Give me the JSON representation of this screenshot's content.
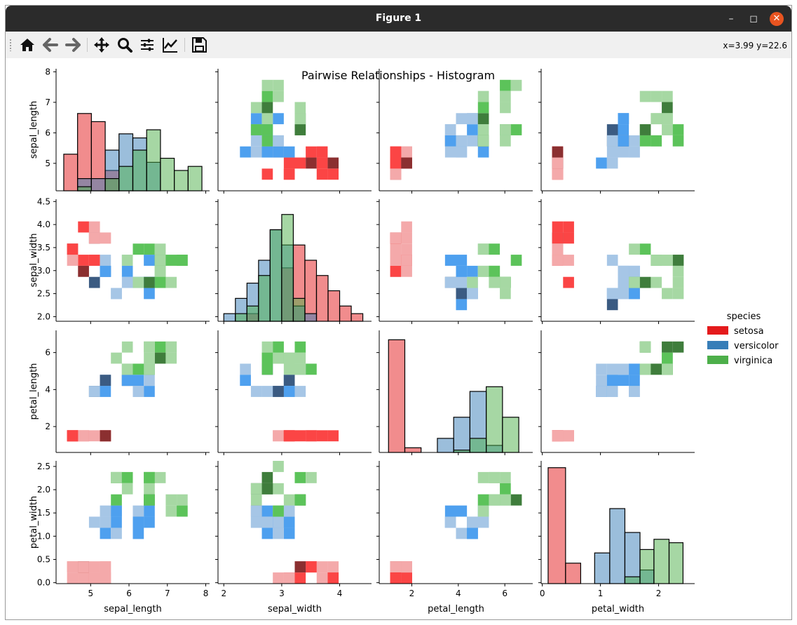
{
  "window": {
    "title": "Figure 1",
    "minimize_icon": "minimize-icon",
    "maximize_icon": "maximize-icon",
    "close_icon": "close-icon"
  },
  "toolbar": {
    "items": [
      {
        "name": "home-button",
        "icon": "home-icon"
      },
      {
        "name": "back-button",
        "icon": "arrow-left-icon"
      },
      {
        "name": "forward-button",
        "icon": "arrow-right-icon"
      },
      {
        "name": "pan-button",
        "icon": "move-icon"
      },
      {
        "name": "zoom-button",
        "icon": "magnifier-icon"
      },
      {
        "name": "subplots-button",
        "icon": "sliders-icon"
      },
      {
        "name": "edit-axes-button",
        "icon": "line-chart-icon"
      },
      {
        "name": "save-button",
        "icon": "floppy-icon"
      }
    ],
    "coords": "x=3.99 y=22.6"
  },
  "chart_data": {
    "type": "heatmap",
    "title": "Pairwise Relationships - Histogram",
    "variables": [
      "sepal_length",
      "sepal_width",
      "petal_length",
      "petal_width"
    ],
    "ticks": [
      [
        5,
        6,
        7,
        8
      ],
      [
        2,
        3,
        4
      ],
      [
        2,
        4,
        6
      ],
      [
        0,
        1,
        2
      ]
    ],
    "ytick_labels": [
      [
        "5",
        "6",
        "7",
        "8"
      ],
      [
        "2.0",
        "2.5",
        "3.0",
        "3.5",
        "4.0",
        "4.5"
      ],
      [
        "2",
        "4",
        "6"
      ],
      [
        "0.0",
        "0.5",
        "1.0",
        "1.5",
        "2.0",
        "2.5"
      ]
    ],
    "ytick_values": [
      [
        5,
        6,
        7,
        8
      ],
      [
        2.0,
        2.5,
        3.0,
        3.5,
        4.0,
        4.5
      ],
      [
        2,
        4,
        6
      ],
      [
        0.0,
        0.5,
        1.0,
        1.5,
        2.0,
        2.5
      ]
    ],
    "ranges": [
      [
        4.1,
        8.1
      ],
      [
        1.9,
        4.55
      ],
      [
        0.6,
        7.2
      ],
      [
        -0.02,
        2.62
      ]
    ],
    "legend": {
      "title": "species",
      "placement": "right",
      "entries": [
        {
          "label": "setosa",
          "color": "#e41a1c"
        },
        {
          "label": "versicolor",
          "color": "#377eb8"
        },
        {
          "label": "virginica",
          "color": "#4daf4a"
        }
      ]
    },
    "diagonal_histograms": [
      {
        "variable": "sepal_length",
        "ylim": [
          0,
          30
        ],
        "bins": [
          4.3,
          4.66,
          5.02,
          5.38,
          5.74,
          6.1,
          6.46,
          6.82,
          7.18,
          7.54,
          7.9
        ],
        "series": [
          {
            "name": "setosa",
            "counts": [
              9,
              19,
              17,
              5,
              0,
              0,
              0,
              0,
              0,
              0
            ]
          },
          {
            "name": "versicolor",
            "counts": [
              0,
              3,
              3,
              10,
              14,
              13,
              7,
              0,
              0,
              0
            ]
          },
          {
            "name": "virginica",
            "counts": [
              0,
              1,
              0,
              3,
              6,
              10,
              15,
              8,
              5,
              6
            ]
          }
        ]
      },
      {
        "variable": "sepal_width",
        "ylim": [
          0,
          16
        ],
        "bins": [
          2.0,
          2.2,
          2.4,
          2.6,
          2.8,
          3.0,
          3.2,
          3.4,
          3.6,
          3.8,
          4.0,
          4.2,
          4.4
        ],
        "series": [
          {
            "name": "setosa",
            "counts": [
              0,
              0,
              1,
              0,
              0,
              7,
              10,
              8,
              6,
              4,
              2,
              1
            ]
          },
          {
            "name": "versicolor",
            "counts": [
              1,
              3,
              5,
              8,
              12,
              10,
              2,
              1,
              0,
              0,
              0,
              0
            ]
          },
          {
            "name": "virginica",
            "counts": [
              0,
              1,
              2,
              6,
              12,
              14,
              3,
              0,
              0,
              0,
              0,
              0
            ]
          }
        ]
      },
      {
        "variable": "petal_length",
        "ylim": [
          0,
          52
        ],
        "bins": [
          1.0,
          1.7,
          2.4,
          3.1,
          3.8,
          4.5,
          5.2,
          5.9,
          6.6
        ],
        "series": [
          {
            "name": "setosa",
            "counts": [
              48,
              2,
              0,
              0,
              0,
              0,
              0,
              0
            ]
          },
          {
            "name": "versicolor",
            "counts": [
              0,
              0,
              0,
              6,
              15,
              26,
              3,
              0
            ]
          },
          {
            "name": "virginica",
            "counts": [
              0,
              0,
              0,
              0,
              1,
              6,
              28,
              15
            ]
          }
        ]
      },
      {
        "variable": "petal_width",
        "ylim": [
          0,
          36
        ],
        "bins": [
          0.1,
          0.4,
          0.66,
          0.9,
          1.16,
          1.42,
          1.68,
          1.92,
          2.18,
          2.42
        ],
        "series": [
          {
            "name": "setosa",
            "counts": [
              34,
              6,
              0,
              0,
              0,
              0,
              0,
              0,
              0
            ]
          },
          {
            "name": "versicolor",
            "counts": [
              0,
              0,
              0,
              9,
              22,
              15,
              4,
              0,
              0
            ]
          },
          {
            "name": "virginica",
            "counts": [
              0,
              0,
              0,
              0,
              0,
              2,
              10,
              13,
              12
            ]
          }
        ]
      }
    ],
    "bivariate_bins": {
      "note": "2D histogram counts per species; x = column variable, y = row variable",
      "sepal_length_vs_sepal_width": {
        "setosa": [
          [
            4.4,
            2.3,
            1
          ],
          [
            4.4,
            2.9,
            2
          ],
          [
            4.4,
            3.1,
            2
          ],
          [
            4.6,
            3.2,
            3
          ],
          [
            4.8,
            3.0,
            4
          ],
          [
            4.8,
            3.3,
            3
          ],
          [
            5.0,
            3.5,
            4
          ],
          [
            5.0,
            3.3,
            3
          ],
          [
            5.0,
            3.7,
            2
          ],
          [
            5.2,
            3.5,
            3
          ],
          [
            5.2,
            3.8,
            3
          ],
          [
            5.4,
            3.9,
            2
          ],
          [
            5.4,
            3.6,
            2
          ],
          [
            5.6,
            4.2,
            1
          ],
          [
            5.8,
            4.0,
            1
          ]
        ],
        "versicolor": [
          [
            5.0,
            2.3,
            1
          ],
          [
            5.0,
            2.5,
            1
          ],
          [
            5.4,
            3.0,
            1
          ],
          [
            5.6,
            2.7,
            2
          ],
          [
            5.6,
            2.9,
            3
          ],
          [
            5.8,
            2.7,
            2
          ],
          [
            6.0,
            2.3,
            1
          ],
          [
            6.2,
            2.9,
            2
          ],
          [
            6.6,
            3.0,
            2
          ],
          [
            6.8,
            2.8,
            1
          ],
          [
            7.0,
            3.2,
            1
          ]
        ],
        "virginica": [
          [
            5.8,
            2.8,
            2
          ],
          [
            6.0,
            3.0,
            2
          ],
          [
            6.2,
            3.4,
            1
          ],
          [
            6.4,
            3.1,
            3
          ],
          [
            6.6,
            3.0,
            2
          ],
          [
            6.8,
            3.2,
            2
          ],
          [
            7.2,
            3.0,
            2
          ],
          [
            7.2,
            3.6,
            1
          ],
          [
            7.6,
            3.0,
            1
          ],
          [
            7.7,
            3.8,
            2
          ]
        ]
      }
    }
  }
}
